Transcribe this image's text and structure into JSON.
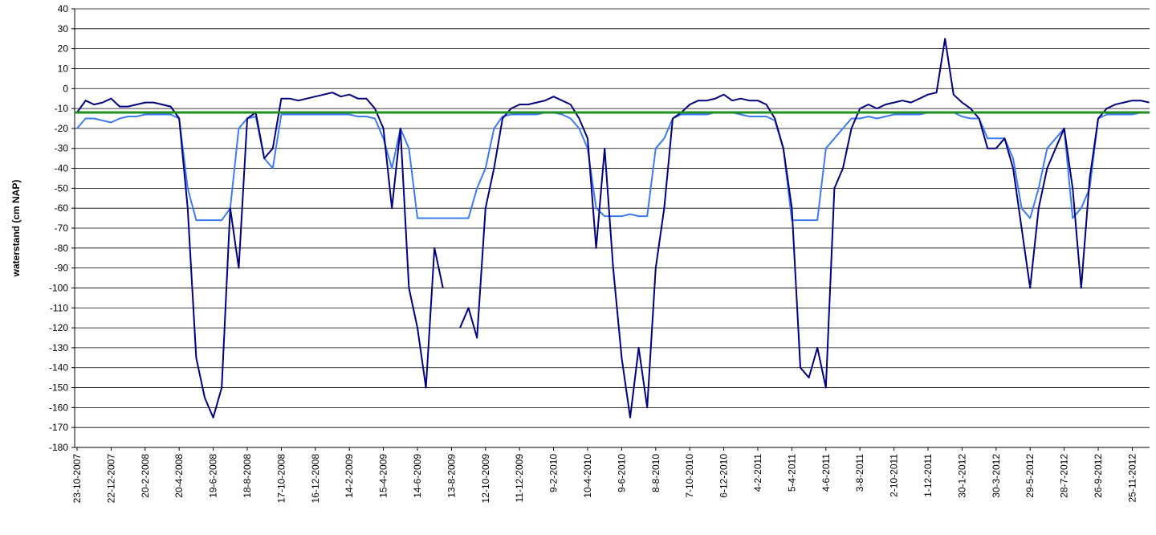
{
  "chart_data": {
    "type": "line",
    "y_label": "waterstand (cm NAP)",
    "categories": [
      "23-10-2007",
      null,
      null,
      null,
      "22-12-2007",
      null,
      null,
      null,
      "20-2-2008",
      null,
      null,
      null,
      "20-4-2008",
      null,
      null,
      null,
      "19-6-2008",
      null,
      null,
      null,
      "18-8-2008",
      null,
      null,
      null,
      "17-10-2008",
      null,
      null,
      null,
      "16-12-2008",
      null,
      null,
      null,
      "14-2-2009",
      null,
      null,
      null,
      "15-4-2009",
      null,
      null,
      null,
      "14-6-2009",
      null,
      null,
      null,
      "13-8-2009",
      null,
      null,
      null,
      "12-10-2009",
      null,
      null,
      null,
      "11-12-2009",
      null,
      null,
      null,
      "9-2-2010",
      null,
      null,
      null,
      "10-4-2010",
      null,
      null,
      null,
      "9-6-2010",
      null,
      null,
      null,
      "8-8-2010",
      null,
      null,
      null,
      "7-10-2010",
      null,
      null,
      null,
      "6-12-2010",
      null,
      null,
      null,
      "4-2-2011",
      null,
      null,
      null,
      "5-4-2011",
      null,
      null,
      null,
      "4-6-2011",
      null,
      null,
      null,
      "3-8-2011",
      null,
      null,
      null,
      "2-10-2011",
      null,
      null,
      null,
      "1-12-2011",
      null,
      null,
      null,
      "30-1-2012",
      null,
      null,
      null,
      "30-3-2012",
      null,
      null,
      null,
      "29-5-2012",
      null,
      null,
      null,
      "28-7-2012",
      null,
      null,
      null,
      "26-9-2012",
      null,
      null,
      null,
      "25-11-2012",
      null,
      null
    ],
    "series": [
      {
        "color": "#3d7bf5",
        "values": [
          -20,
          -15,
          -15,
          -16,
          -17,
          -15,
          -14,
          -14,
          -13,
          -13,
          -13,
          -13,
          -15,
          -50,
          -66,
          -66,
          -66,
          -66,
          -60,
          -20,
          -15,
          -14,
          -35,
          -40,
          -13,
          -13,
          -13,
          -13,
          -13,
          -13,
          -13,
          -13,
          -13,
          -14,
          -14,
          -15,
          -25,
          -40,
          -20,
          -30,
          -65,
          -65,
          -65,
          -65,
          -65,
          -65,
          -65,
          -50,
          -40,
          -20,
          -14,
          -13,
          -13,
          -13,
          -13,
          -12,
          -12,
          -13,
          -15,
          -20,
          -30,
          -60,
          -64,
          -64,
          -64,
          -63,
          -64,
          -64,
          -30,
          -25,
          -15,
          -13,
          -13,
          -13,
          -13,
          -12,
          -12,
          -12,
          -13,
          -14,
          -14,
          -14,
          -16,
          -30,
          -66,
          -66,
          -66,
          -66,
          -30,
          -25,
          -20,
          -15,
          -15,
          -14,
          -15,
          -14,
          -13,
          -13,
          -13,
          -13,
          -12,
          -12,
          -12,
          -12,
          -14,
          -15,
          -15,
          -25,
          -25,
          -25,
          -35,
          -60,
          -65,
          -50,
          -30,
          -25,
          -20,
          -65,
          -60,
          -50,
          -15,
          -13,
          -13,
          -13,
          -13,
          -12,
          -12
        ]
      },
      {
        "color": "#000080",
        "values": [
          -12,
          -6,
          -8,
          -7,
          -5,
          -9,
          -9,
          -8,
          -7,
          -7,
          -8,
          -9,
          -15,
          -60,
          -135,
          -155,
          -165,
          -150,
          -60,
          -90,
          -15,
          -12,
          -35,
          -30,
          -5,
          -5,
          -6,
          -5,
          -4,
          -3,
          -2,
          -4,
          -3,
          -5,
          -5,
          -10,
          -20,
          -60,
          -20,
          -100,
          -120,
          -150,
          -80,
          -100,
          null,
          -120,
          -110,
          -125,
          -60,
          -40,
          -15,
          -10,
          -8,
          -8,
          -7,
          -6,
          -4,
          -6,
          -8,
          -15,
          -25,
          -80,
          -30,
          -90,
          -135,
          -165,
          -130,
          -160,
          -90,
          -60,
          -15,
          -12,
          -8,
          -6,
          -6,
          -5,
          -3,
          -6,
          -5,
          -6,
          -6,
          -8,
          -15,
          -30,
          -60,
          -140,
          -145,
          -130,
          -150,
          -50,
          -40,
          -20,
          -10,
          -8,
          -10,
          -8,
          -7,
          -6,
          -7,
          -5,
          -3,
          -2,
          25,
          -3,
          -7,
          -10,
          -15,
          -30,
          -30,
          -25,
          -40,
          -70,
          -100,
          -60,
          -40,
          -30,
          -20,
          -50,
          -100,
          -45,
          -15,
          -10,
          -8,
          -7,
          -6,
          -6,
          -7
        ]
      }
    ],
    "reference_line": {
      "value": -12,
      "color": "#1f8f1f"
    },
    "ylim": [
      -180,
      40
    ],
    "yticks": [
      -180,
      -170,
      -160,
      -150,
      -140,
      -130,
      -120,
      -110,
      -100,
      -90,
      -80,
      -70,
      -60,
      -50,
      -40,
      -30,
      -20,
      -10,
      0,
      10,
      20,
      30,
      40
    ],
    "grid": true
  }
}
